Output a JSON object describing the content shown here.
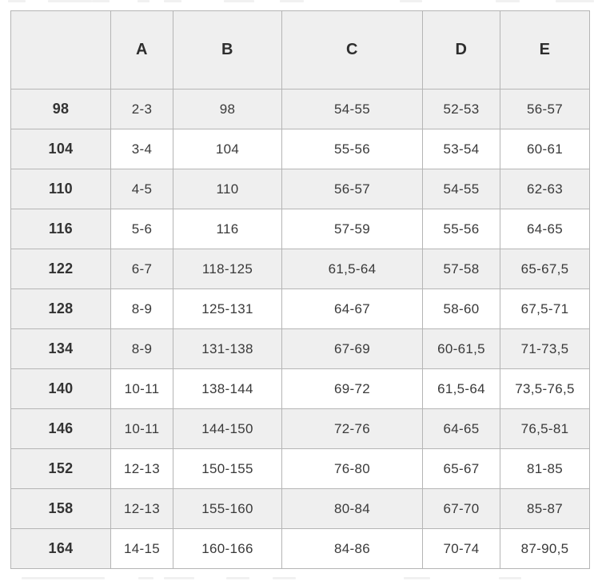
{
  "page": {
    "background": "#ffffff"
  },
  "colors": {
    "shaded_cell_bg": "#efefef",
    "plain_cell_bg": "#ffffff",
    "border": "#b5b5b5",
    "header_text": "#2e2e2e",
    "cell_text": "#3a3a3a"
  },
  "chart_data": {
    "type": "table",
    "title": "",
    "columns": [
      "",
      "A",
      "B",
      "C",
      "D",
      "E"
    ],
    "rows": [
      {
        "size": "98",
        "values": [
          "2-3",
          "98",
          "54-55",
          "52-53",
          "56-57"
        ]
      },
      {
        "size": "104",
        "values": [
          "3-4",
          "104",
          "55-56",
          "53-54",
          "60-61"
        ]
      },
      {
        "size": "110",
        "values": [
          "4-5",
          "110",
          "56-57",
          "54-55",
          "62-63"
        ]
      },
      {
        "size": "116",
        "values": [
          "5-6",
          "116",
          "57-59",
          "55-56",
          "64-65"
        ]
      },
      {
        "size": "122",
        "values": [
          "6-7",
          "118-125",
          "61,5-64",
          "57-58",
          "65-67,5"
        ]
      },
      {
        "size": "128",
        "values": [
          "8-9",
          "125-131",
          "64-67",
          "58-60",
          "67,5-71"
        ]
      },
      {
        "size": "134",
        "values": [
          "8-9",
          "131-138",
          "67-69",
          "60-61,5",
          "71-73,5"
        ]
      },
      {
        "size": "140",
        "values": [
          "10-11",
          "138-144",
          "69-72",
          "61,5-64",
          "73,5-76,5"
        ]
      },
      {
        "size": "146",
        "values": [
          "10-11",
          "144-150",
          "72-76",
          "64-65",
          "76,5-81"
        ]
      },
      {
        "size": "152",
        "values": [
          "12-13",
          "150-155",
          "76-80",
          "65-67",
          "81-85"
        ]
      },
      {
        "size": "158",
        "values": [
          "12-13",
          "155-160",
          "80-84",
          "67-70",
          "85-87"
        ]
      },
      {
        "size": "164",
        "values": [
          "14-15",
          "160-166",
          "84-86",
          "70-74",
          "87-90,5"
        ]
      }
    ],
    "layout": {
      "shaded_row_indices": [
        0,
        2,
        4,
        6,
        8,
        10
      ],
      "grid": true,
      "first_column_always_shaded": true
    }
  }
}
